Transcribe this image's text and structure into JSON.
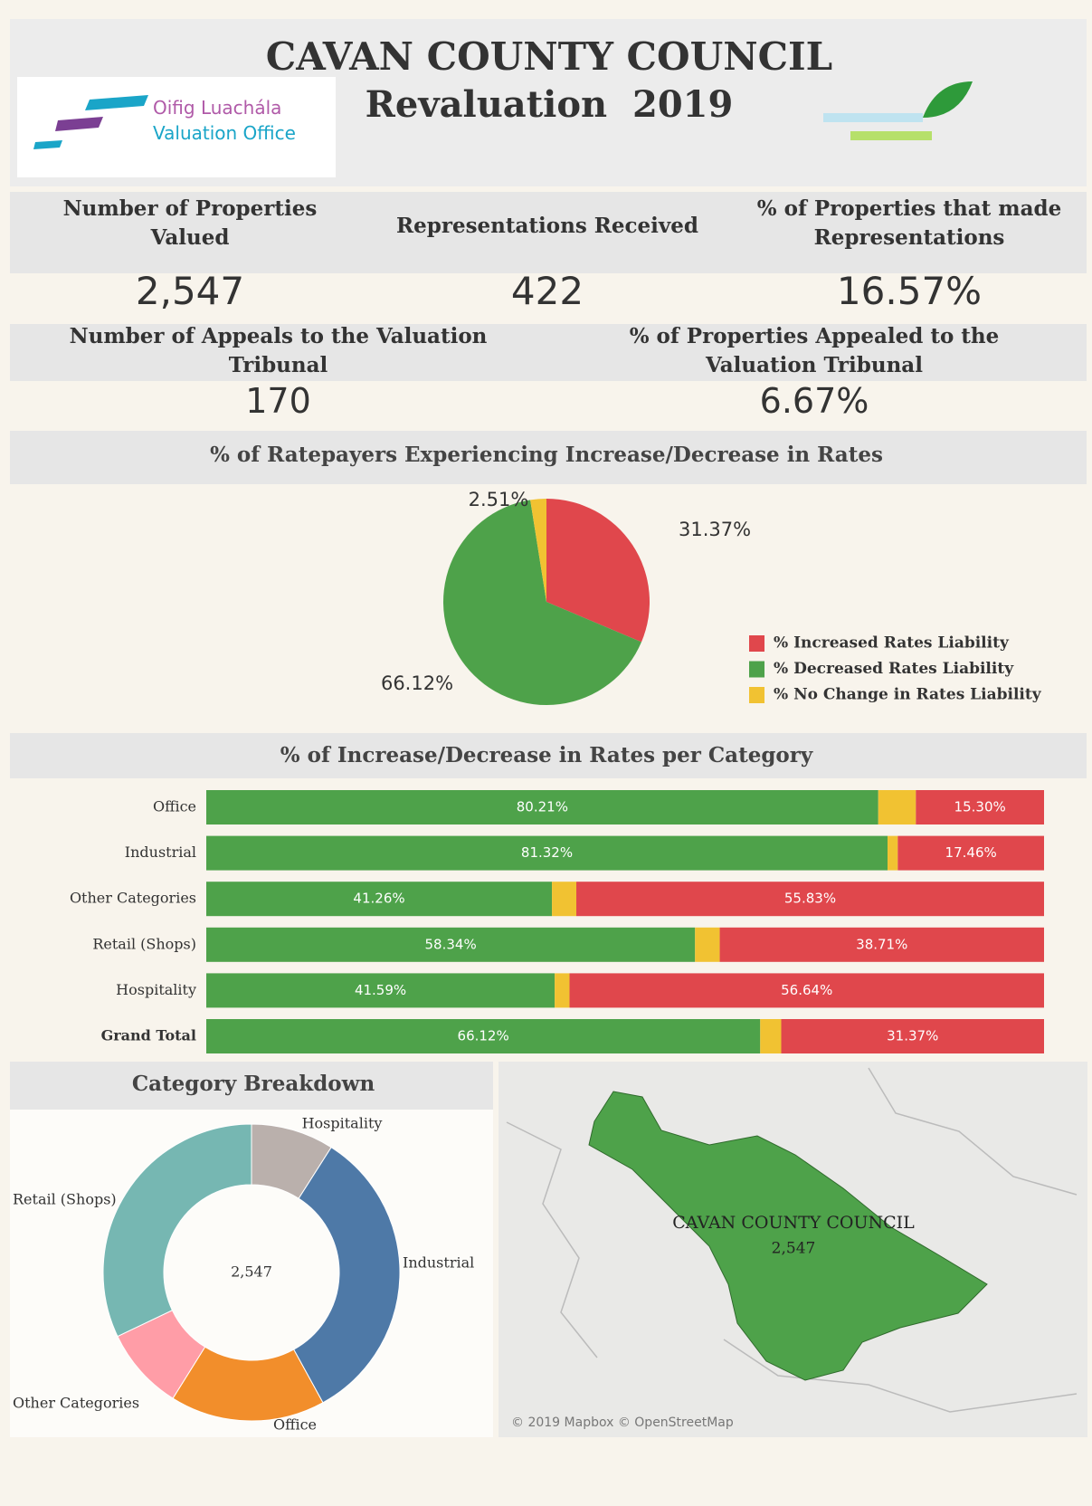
{
  "header": {
    "title": "CAVAN COUNTY COUNCIL",
    "subtitle": "Revaluation  2019",
    "logo_text": [
      "Oifig Luachála",
      "Valuation Office"
    ]
  },
  "kpis": [
    {
      "label": "Number of Properties Valued",
      "value": "2,547"
    },
    {
      "label": "Representations Received",
      "value": "422"
    },
    {
      "label": "% of Properties that made Representations",
      "value": "16.57%"
    },
    {
      "label": "Number of Appeals to the Valuation Tribunal",
      "value": "170"
    },
    {
      "label": "% of Properties Appealed to the Valuation Tribunal",
      "value": "6.67%"
    }
  ],
  "chart_data": [
    {
      "type": "pie",
      "title": "% of Ratepayers Experiencing Increase/Decrease in Rates",
      "categories": [
        "% Increased Rates Liability",
        "% Decreased Rates Liability",
        "% No Change in Rates Liability"
      ],
      "values": [
        31.37,
        66.12,
        2.51
      ],
      "value_labels": [
        "31.37%",
        "66.12%",
        "2.51%"
      ],
      "colors": [
        "#e0474c",
        "#4ea24a",
        "#f1c232"
      ]
    },
    {
      "type": "bar",
      "orientation": "horizontal",
      "stacked": true,
      "title": "% of Increase/Decrease in Rates per Category",
      "categories": [
        "Office",
        "Industrial",
        "Other Categories",
        "Retail (Shops)",
        "Hospitality",
        "Grand Total"
      ],
      "xlim": [
        0,
        100
      ],
      "series": [
        {
          "color": "#4ea24a",
          "values": [
            80.21,
            81.32,
            41.26,
            58.34,
            41.59,
            66.12
          ],
          "value_labels": [
            "80.21%",
            "81.32%",
            "41.26%",
            "58.34%",
            "41.59%",
            "66.12%"
          ]
        },
        {
          "color": "#f1c232",
          "values": [
            4.49,
            1.22,
            2.91,
            2.95,
            1.77,
            2.51
          ]
        },
        {
          "color": "#e0474c",
          "values": [
            15.3,
            17.46,
            55.83,
            38.71,
            56.64,
            31.37
          ],
          "value_labels": [
            "15.30%",
            "17.46%",
            "55.83%",
            "38.71%",
            "56.64%",
            "31.37%"
          ]
        }
      ]
    },
    {
      "type": "donut",
      "title": "Category Breakdown",
      "categories": [
        "Hospitality",
        "Industrial",
        "Office",
        "Other Categories",
        "Retail (Shops)"
      ],
      "values": [
        230,
        840,
        430,
        230,
        817
      ],
      "colors": [
        "#bab0ac",
        "#4e79a7",
        "#f28e2b",
        "#ff9da7",
        "#76b7b2"
      ],
      "center_label": "2,547"
    }
  ],
  "map": {
    "label": "CAVAN COUNTY COUNCIL",
    "value": "2,547",
    "attribution": "© 2019 Mapbox © OpenStreetMap"
  }
}
